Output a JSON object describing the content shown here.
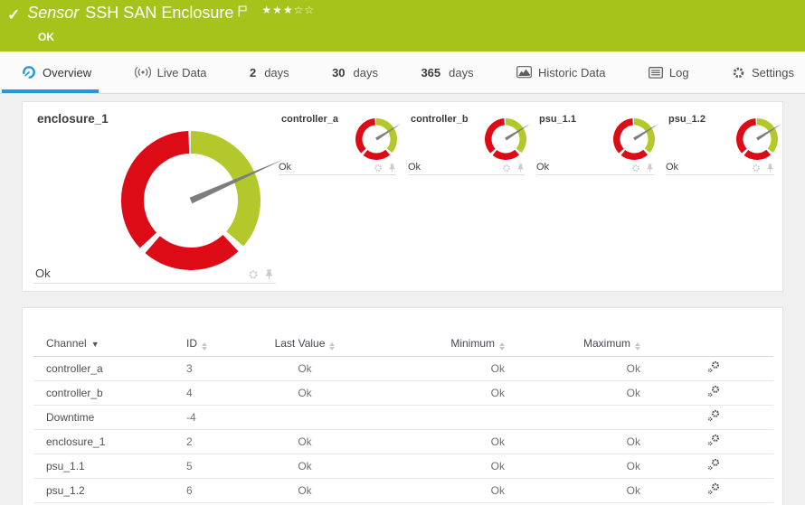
{
  "header": {
    "check": "✓",
    "type_label": "Sensor",
    "title": "SSH SAN Enclosure",
    "stars": "★★★☆☆",
    "status": "OK",
    "bg_color": "#a6c31c"
  },
  "tabs": {
    "accent_color": "#239ad5",
    "items": [
      {
        "label": "Overview",
        "icon": "gauge-icon",
        "active": true
      },
      {
        "label": "Live Data",
        "icon": "live-icon",
        "active": false
      },
      {
        "prefix": "2",
        "label": "days",
        "active": false
      },
      {
        "prefix": "30",
        "label": "days",
        "active": false
      },
      {
        "prefix": "365",
        "label": "days",
        "active": false
      },
      {
        "label": "Historic Data",
        "icon": "chart-icon",
        "active": false
      },
      {
        "label": "Log",
        "icon": "log-icon",
        "active": false
      },
      {
        "label": "Settings",
        "icon": "gear-icon",
        "active": false
      }
    ]
  },
  "gauges": {
    "colors": {
      "green": "#b2c82b",
      "red": "#dc0b16",
      "needle": "#7d7d7d"
    },
    "primary": {
      "name": "enclosure_1",
      "value": "Ok",
      "needle_deg": 66,
      "segments": [
        {
          "color": "green",
          "from": 0,
          "to": 131
        },
        {
          "color": "red",
          "from": 137,
          "to": 221
        },
        {
          "color": "red",
          "from": 227,
          "to": 358
        }
      ]
    },
    "small": [
      {
        "name": "controller_a",
        "value": "Ok",
        "needle_deg": 58,
        "segments": [
          {
            "color": "green",
            "from": 0,
            "to": 131
          },
          {
            "color": "red",
            "from": 139,
            "to": 219
          },
          {
            "color": "red",
            "from": 227,
            "to": 356
          }
        ]
      },
      {
        "name": "controller_b",
        "value": "Ok",
        "needle_deg": 58,
        "segments": [
          {
            "color": "green",
            "from": 0,
            "to": 131
          },
          {
            "color": "red",
            "from": 139,
            "to": 219
          },
          {
            "color": "red",
            "from": 227,
            "to": 356
          }
        ]
      },
      {
        "name": "psu_1.1",
        "value": "Ok",
        "needle_deg": 58,
        "segments": [
          {
            "color": "green",
            "from": 0,
            "to": 131
          },
          {
            "color": "red",
            "from": 139,
            "to": 219
          },
          {
            "color": "red",
            "from": 227,
            "to": 356
          }
        ]
      },
      {
        "name": "psu_1.2",
        "value": "Ok",
        "needle_deg": 58,
        "segments": [
          {
            "color": "green",
            "from": 0,
            "to": 131
          },
          {
            "color": "red",
            "from": 139,
            "to": 219
          },
          {
            "color": "red",
            "from": 227,
            "to": 356
          }
        ]
      }
    ]
  },
  "table": {
    "columns": {
      "channel": "Channel",
      "id": "ID",
      "last": "Last Value",
      "min": "Minimum",
      "max": "Maximum"
    },
    "rows": [
      {
        "channel": "controller_a",
        "id": "3",
        "last": "Ok",
        "min": "Ok",
        "max": "Ok"
      },
      {
        "channel": "controller_b",
        "id": "4",
        "last": "Ok",
        "min": "Ok",
        "max": "Ok"
      },
      {
        "channel": "Downtime",
        "id": "-4",
        "last": "",
        "min": "",
        "max": ""
      },
      {
        "channel": "enclosure_1",
        "id": "2",
        "last": "Ok",
        "min": "Ok",
        "max": "Ok"
      },
      {
        "channel": "psu_1.1",
        "id": "5",
        "last": "Ok",
        "min": "Ok",
        "max": "Ok"
      },
      {
        "channel": "psu_1.2",
        "id": "6",
        "last": "Ok",
        "min": "Ok",
        "max": "Ok"
      }
    ]
  }
}
